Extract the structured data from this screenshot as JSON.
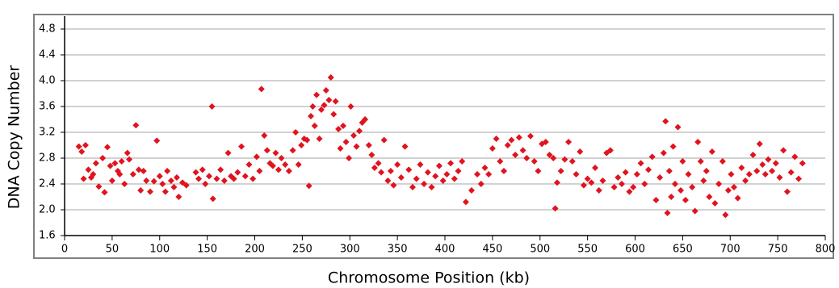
{
  "chart_data": {
    "type": "scatter",
    "x_label": "Chromosome Position (kb)",
    "y_label": "DNA Copy Number",
    "color": "#e0141e",
    "grid": true,
    "xlim": [
      0,
      800
    ],
    "xticks": [
      0,
      50,
      100,
      150,
      200,
      250,
      300,
      350,
      400,
      450,
      500,
      550,
      600,
      650,
      700,
      750,
      800
    ],
    "ylim": [
      1.6,
      5.0
    ],
    "yticks": [
      1.6,
      {
        "value": 2.0,
        "label": "2.0"
      },
      2.4,
      2.8,
      3.2,
      3.6,
      {
        "value": 4.0,
        "label": "4.0"
      },
      4.4,
      4.8
    ],
    "x": [
      15,
      18,
      20,
      22,
      25,
      28,
      30,
      33,
      36,
      40,
      42,
      45,
      48,
      50,
      53,
      56,
      58,
      60,
      63,
      66,
      68,
      72,
      75,
      78,
      80,
      83,
      86,
      90,
      94,
      97,
      100,
      103,
      106,
      108,
      112,
      115,
      118,
      120,
      124,
      128,
      138,
      141,
      145,
      148,
      152,
      155,
      156,
      160,
      164,
      168,
      172,
      175,
      178,
      182,
      186,
      190,
      194,
      198,
      202,
      205,
      207,
      210,
      213,
      216,
      219,
      222,
      225,
      228,
      232,
      236,
      240,
      243,
      246,
      249,
      252,
      255,
      257,
      259,
      261,
      263,
      265,
      268,
      270,
      273,
      275,
      278,
      280,
      283,
      285,
      288,
      290,
      293,
      296,
      299,
      301,
      304,
      307,
      310,
      313,
      316,
      320,
      323,
      326,
      330,
      333,
      336,
      340,
      343,
      346,
      350,
      354,
      358,
      362,
      366,
      370,
      374,
      378,
      382,
      386,
      390,
      394,
      398,
      402,
      406,
      410,
      414,
      418,
      422,
      428,
      434,
      438,
      442,
      446,
      450,
      454,
      458,
      462,
      466,
      470,
      474,
      478,
      482,
      486,
      490,
      494,
      498,
      502,
      506,
      510,
      514,
      516,
      518,
      522,
      526,
      530,
      534,
      538,
      542,
      546,
      550,
      554,
      558,
      562,
      566,
      570,
      574,
      578,
      582,
      586,
      590,
      594,
      598,
      602,
      606,
      610,
      614,
      618,
      622,
      626,
      630,
      632,
      634,
      636,
      638,
      640,
      642,
      645,
      648,
      650,
      653,
      656,
      660,
      663,
      666,
      669,
      672,
      675,
      678,
      681,
      684,
      688,
      692,
      695,
      698,
      701,
      704,
      708,
      712,
      716,
      720,
      724,
      728,
      731,
      734,
      737,
      740,
      744,
      748,
      752,
      756,
      760,
      764,
      768,
      772,
      776
    ],
    "values": [
      2.98,
      2.9,
      2.48,
      3.0,
      2.62,
      2.5,
      2.55,
      2.72,
      2.36,
      2.8,
      2.27,
      2.97,
      2.68,
      2.45,
      2.72,
      2.6,
      2.55,
      2.75,
      2.4,
      2.88,
      2.78,
      2.55,
      3.31,
      2.62,
      2.3,
      2.6,
      2.45,
      2.28,
      2.44,
      3.07,
      2.52,
      2.4,
      2.28,
      2.6,
      2.45,
      2.35,
      2.5,
      2.2,
      2.42,
      2.38,
      2.58,
      2.48,
      2.62,
      2.4,
      2.52,
      3.6,
      2.17,
      2.48,
      2.62,
      2.45,
      2.88,
      2.52,
      2.48,
      2.58,
      2.98,
      2.52,
      2.7,
      2.48,
      2.82,
      2.6,
      3.87,
      3.15,
      2.92,
      2.72,
      2.68,
      2.88,
      2.62,
      2.8,
      2.7,
      2.6,
      2.92,
      3.2,
      2.7,
      3.0,
      3.1,
      3.08,
      2.37,
      3.45,
      3.6,
      3.3,
      3.78,
      3.1,
      3.55,
      3.62,
      3.85,
      3.7,
      4.05,
      3.48,
      3.68,
      3.25,
      2.95,
      3.3,
      3.05,
      2.8,
      3.6,
      3.15,
      2.98,
      3.22,
      3.35,
      3.4,
      3.0,
      2.85,
      2.65,
      2.72,
      2.58,
      3.08,
      2.45,
      2.6,
      2.38,
      2.7,
      2.5,
      2.98,
      2.62,
      2.35,
      2.48,
      2.7,
      2.4,
      2.58,
      2.35,
      2.52,
      2.68,
      2.45,
      2.55,
      2.72,
      2.48,
      2.6,
      2.75,
      2.12,
      2.3,
      2.55,
      2.4,
      2.65,
      2.55,
      2.95,
      3.1,
      2.75,
      2.6,
      3.0,
      3.08,
      2.85,
      3.12,
      2.92,
      2.8,
      3.14,
      2.75,
      2.6,
      3.02,
      3.05,
      2.85,
      2.8,
      2.02,
      2.42,
      2.6,
      2.78,
      3.05,
      2.75,
      2.55,
      2.9,
      2.38,
      2.48,
      2.42,
      2.65,
      2.3,
      2.45,
      2.88,
      2.92,
      2.35,
      2.5,
      2.4,
      2.58,
      2.28,
      2.35,
      2.55,
      2.72,
      2.4,
      2.62,
      2.82,
      2.15,
      2.5,
      2.88,
      3.37,
      1.95,
      2.6,
      2.2,
      2.98,
      2.4,
      3.28,
      2.3,
      2.75,
      2.15,
      2.55,
      2.35,
      1.98,
      3.05,
      2.75,
      2.45,
      2.6,
      2.2,
      2.9,
      2.1,
      2.4,
      2.75,
      1.92,
      2.3,
      2.55,
      2.35,
      2.18,
      2.65,
      2.45,
      2.55,
      2.85,
      2.6,
      3.02,
      2.7,
      2.55,
      2.78,
      2.6,
      2.72,
      2.5,
      2.92,
      2.28,
      2.58,
      2.82,
      2.48,
      2.72
    ]
  }
}
